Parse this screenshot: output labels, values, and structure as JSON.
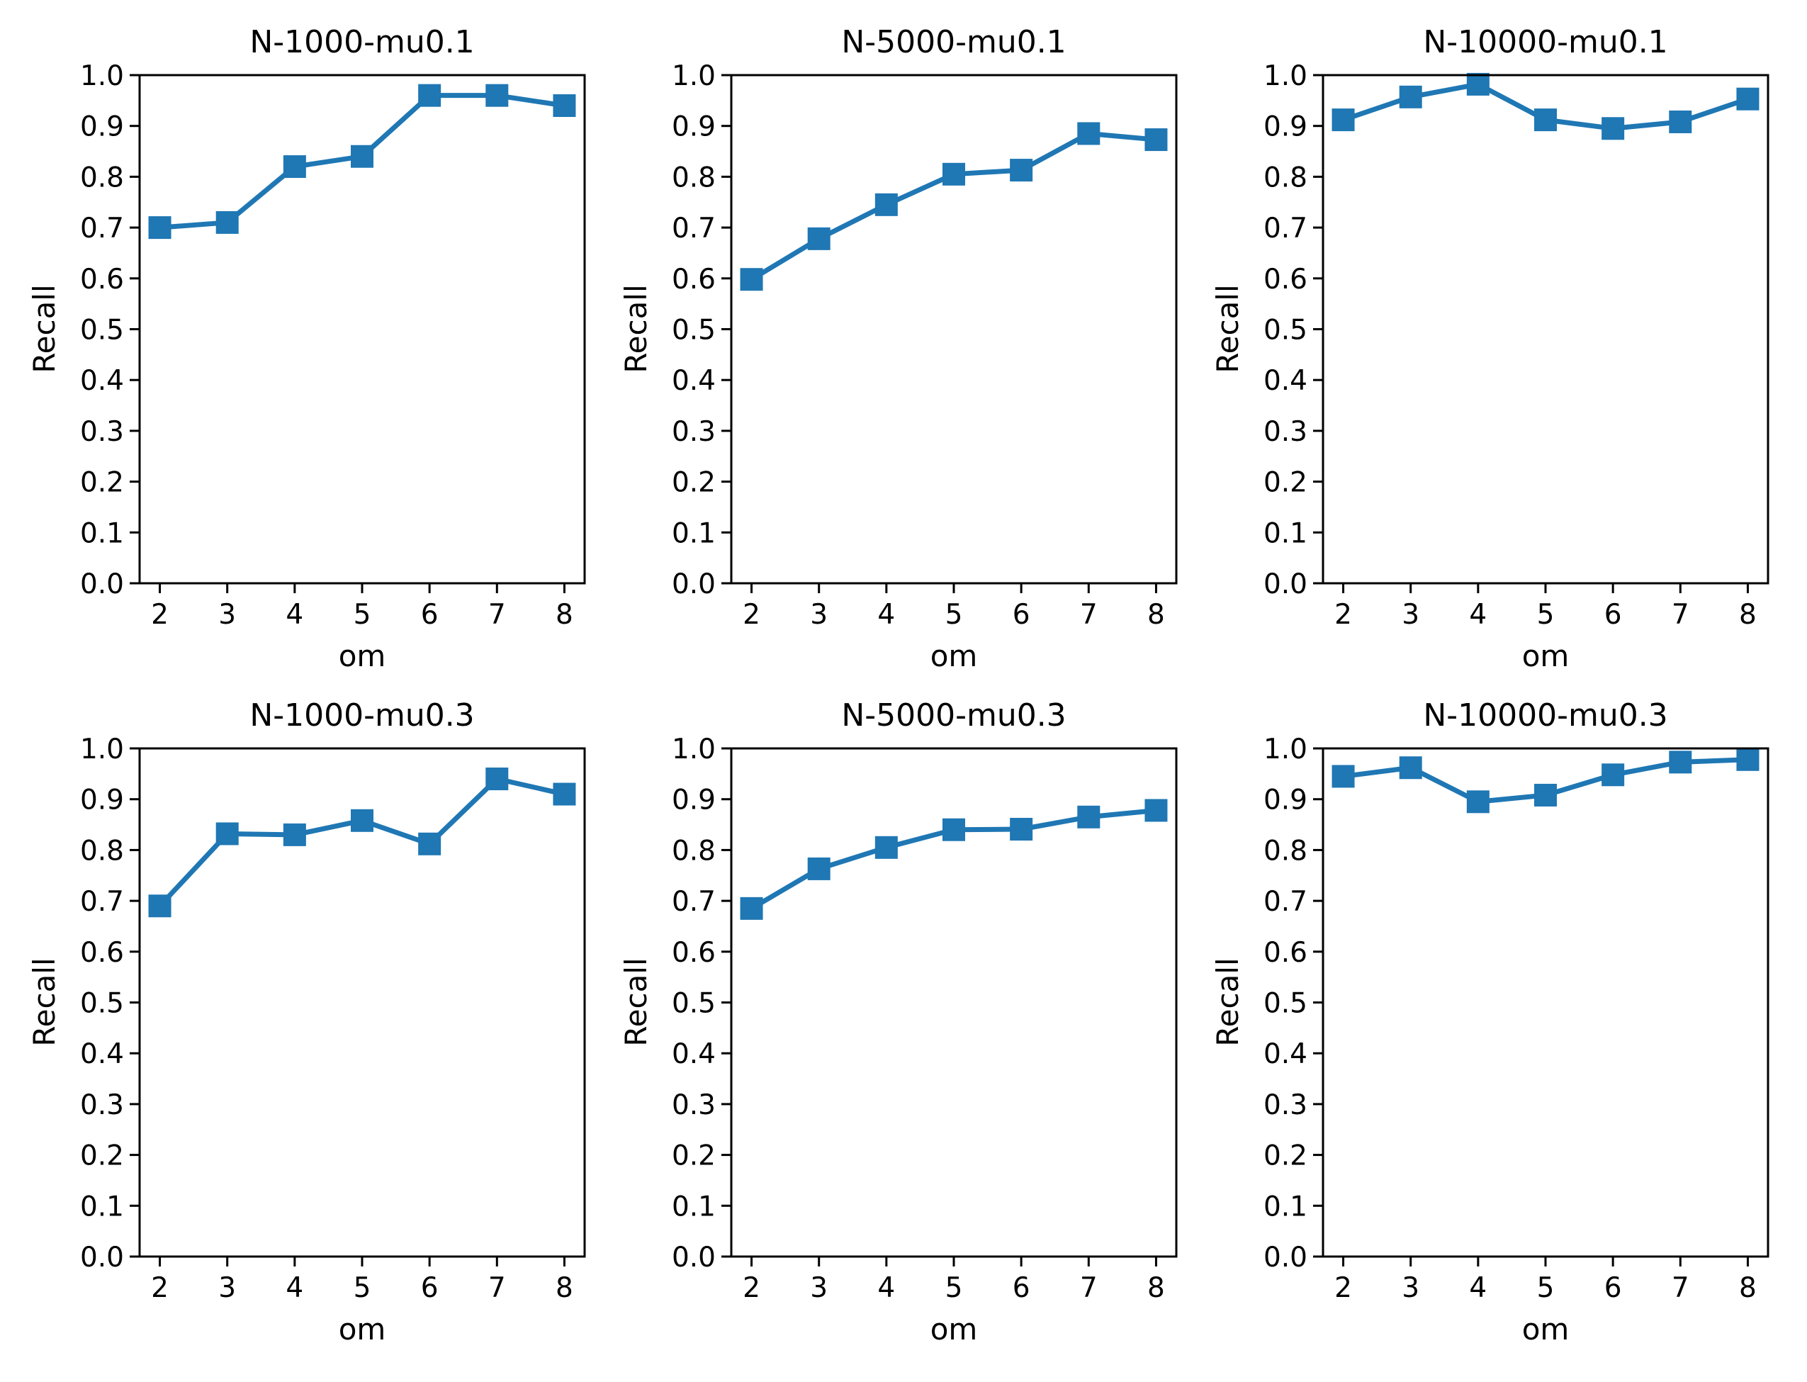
{
  "figure": {
    "background": "#ffffff",
    "accent_color": "#1f77b4"
  },
  "chart_data": [
    {
      "type": "line",
      "title": "N-1000-mu0.1",
      "xlabel": "om",
      "ylabel": "Recall",
      "x": [
        2,
        3,
        4,
        5,
        6,
        7,
        8
      ],
      "y": [
        0.7,
        0.71,
        0.82,
        0.84,
        0.96,
        0.96,
        0.94
      ],
      "xlim": [
        1.7,
        8.3
      ],
      "ylim": [
        0.0,
        1.0
      ],
      "xticks": [
        2,
        3,
        4,
        5,
        6,
        7,
        8
      ],
      "xtick_labels": [
        "2",
        "3",
        "4",
        "5",
        "6",
        "7",
        "8"
      ],
      "yticks": [
        0.0,
        0.1,
        0.2,
        0.3,
        0.4,
        0.5,
        0.6,
        0.7,
        0.8,
        0.9,
        1.0
      ],
      "ytick_labels": [
        "0.0",
        "0.1",
        "0.2",
        "0.3",
        "0.4",
        "0.5",
        "0.6",
        "0.7",
        "0.8",
        "0.9",
        "1.0"
      ],
      "line_color": "#1f77b4",
      "marker": "square",
      "grid": false,
      "legend": "none"
    },
    {
      "type": "line",
      "title": "N-5000-mu0.1",
      "xlabel": "om",
      "ylabel": "Recall",
      "x": [
        2,
        3,
        4,
        5,
        6,
        7,
        8
      ],
      "y": [
        0.598,
        0.678,
        0.745,
        0.805,
        0.813,
        0.885,
        0.873
      ],
      "xlim": [
        1.7,
        8.3
      ],
      "ylim": [
        0.0,
        1.0
      ],
      "xticks": [
        2,
        3,
        4,
        5,
        6,
        7,
        8
      ],
      "xtick_labels": [
        "2",
        "3",
        "4",
        "5",
        "6",
        "7",
        "8"
      ],
      "yticks": [
        0.0,
        0.1,
        0.2,
        0.3,
        0.4,
        0.5,
        0.6,
        0.7,
        0.8,
        0.9,
        1.0
      ],
      "ytick_labels": [
        "0.0",
        "0.1",
        "0.2",
        "0.3",
        "0.4",
        "0.5",
        "0.6",
        "0.7",
        "0.8",
        "0.9",
        "1.0"
      ],
      "line_color": "#1f77b4",
      "marker": "square",
      "grid": false,
      "legend": "none"
    },
    {
      "type": "line",
      "title": "N-10000-mu0.1",
      "xlabel": "om",
      "ylabel": "Recall",
      "x": [
        2,
        3,
        4,
        5,
        6,
        7,
        8
      ],
      "y": [
        0.912,
        0.957,
        0.982,
        0.912,
        0.895,
        0.908,
        0.953
      ],
      "xlim": [
        1.7,
        8.3
      ],
      "ylim": [
        0.0,
        1.0
      ],
      "xticks": [
        2,
        3,
        4,
        5,
        6,
        7,
        8
      ],
      "xtick_labels": [
        "2",
        "3",
        "4",
        "5",
        "6",
        "7",
        "8"
      ],
      "yticks": [
        0.0,
        0.1,
        0.2,
        0.3,
        0.4,
        0.5,
        0.6,
        0.7,
        0.8,
        0.9,
        1.0
      ],
      "ytick_labels": [
        "0.0",
        "0.1",
        "0.2",
        "0.3",
        "0.4",
        "0.5",
        "0.6",
        "0.7",
        "0.8",
        "0.9",
        "1.0"
      ],
      "line_color": "#1f77b4",
      "marker": "square",
      "grid": false,
      "legend": "none"
    },
    {
      "type": "line",
      "title": "N-1000-mu0.3",
      "xlabel": "om",
      "ylabel": "Recall",
      "x": [
        2,
        3,
        4,
        5,
        6,
        7,
        8
      ],
      "y": [
        0.69,
        0.832,
        0.83,
        0.858,
        0.812,
        0.94,
        0.91
      ],
      "xlim": [
        1.7,
        8.3
      ],
      "ylim": [
        0.0,
        1.0
      ],
      "xticks": [
        2,
        3,
        4,
        5,
        6,
        7,
        8
      ],
      "xtick_labels": [
        "2",
        "3",
        "4",
        "5",
        "6",
        "7",
        "8"
      ],
      "yticks": [
        0.0,
        0.1,
        0.2,
        0.3,
        0.4,
        0.5,
        0.6,
        0.7,
        0.8,
        0.9,
        1.0
      ],
      "ytick_labels": [
        "0.0",
        "0.1",
        "0.2",
        "0.3",
        "0.4",
        "0.5",
        "0.6",
        "0.7",
        "0.8",
        "0.9",
        "1.0"
      ],
      "line_color": "#1f77b4",
      "marker": "square",
      "grid": false,
      "legend": "none"
    },
    {
      "type": "line",
      "title": "N-5000-mu0.3",
      "xlabel": "om",
      "ylabel": "Recall",
      "x": [
        2,
        3,
        4,
        5,
        6,
        7,
        8
      ],
      "y": [
        0.685,
        0.763,
        0.805,
        0.84,
        0.841,
        0.865,
        0.878
      ],
      "xlim": [
        1.7,
        8.3
      ],
      "ylim": [
        0.0,
        1.0
      ],
      "xticks": [
        2,
        3,
        4,
        5,
        6,
        7,
        8
      ],
      "xtick_labels": [
        "2",
        "3",
        "4",
        "5",
        "6",
        "7",
        "8"
      ],
      "yticks": [
        0.0,
        0.1,
        0.2,
        0.3,
        0.4,
        0.5,
        0.6,
        0.7,
        0.8,
        0.9,
        1.0
      ],
      "ytick_labels": [
        "0.0",
        "0.1",
        "0.2",
        "0.3",
        "0.4",
        "0.5",
        "0.6",
        "0.7",
        "0.8",
        "0.9",
        "1.0"
      ],
      "line_color": "#1f77b4",
      "marker": "square",
      "grid": false,
      "legend": "none"
    },
    {
      "type": "line",
      "title": "N-10000-mu0.3",
      "xlabel": "om",
      "ylabel": "Recall",
      "x": [
        2,
        3,
        4,
        5,
        6,
        7,
        8
      ],
      "y": [
        0.945,
        0.962,
        0.895,
        0.908,
        0.948,
        0.973,
        0.978
      ],
      "xlim": [
        1.7,
        8.3
      ],
      "ylim": [
        0.0,
        1.0
      ],
      "xticks": [
        2,
        3,
        4,
        5,
        6,
        7,
        8
      ],
      "xtick_labels": [
        "2",
        "3",
        "4",
        "5",
        "6",
        "7",
        "8"
      ],
      "yticks": [
        0.0,
        0.1,
        0.2,
        0.3,
        0.4,
        0.5,
        0.6,
        0.7,
        0.8,
        0.9,
        1.0
      ],
      "ytick_labels": [
        "0.0",
        "0.1",
        "0.2",
        "0.3",
        "0.4",
        "0.5",
        "0.6",
        "0.7",
        "0.8",
        "0.9",
        "1.0"
      ],
      "line_color": "#1f77b4",
      "marker": "square",
      "grid": false,
      "legend": "none"
    }
  ]
}
